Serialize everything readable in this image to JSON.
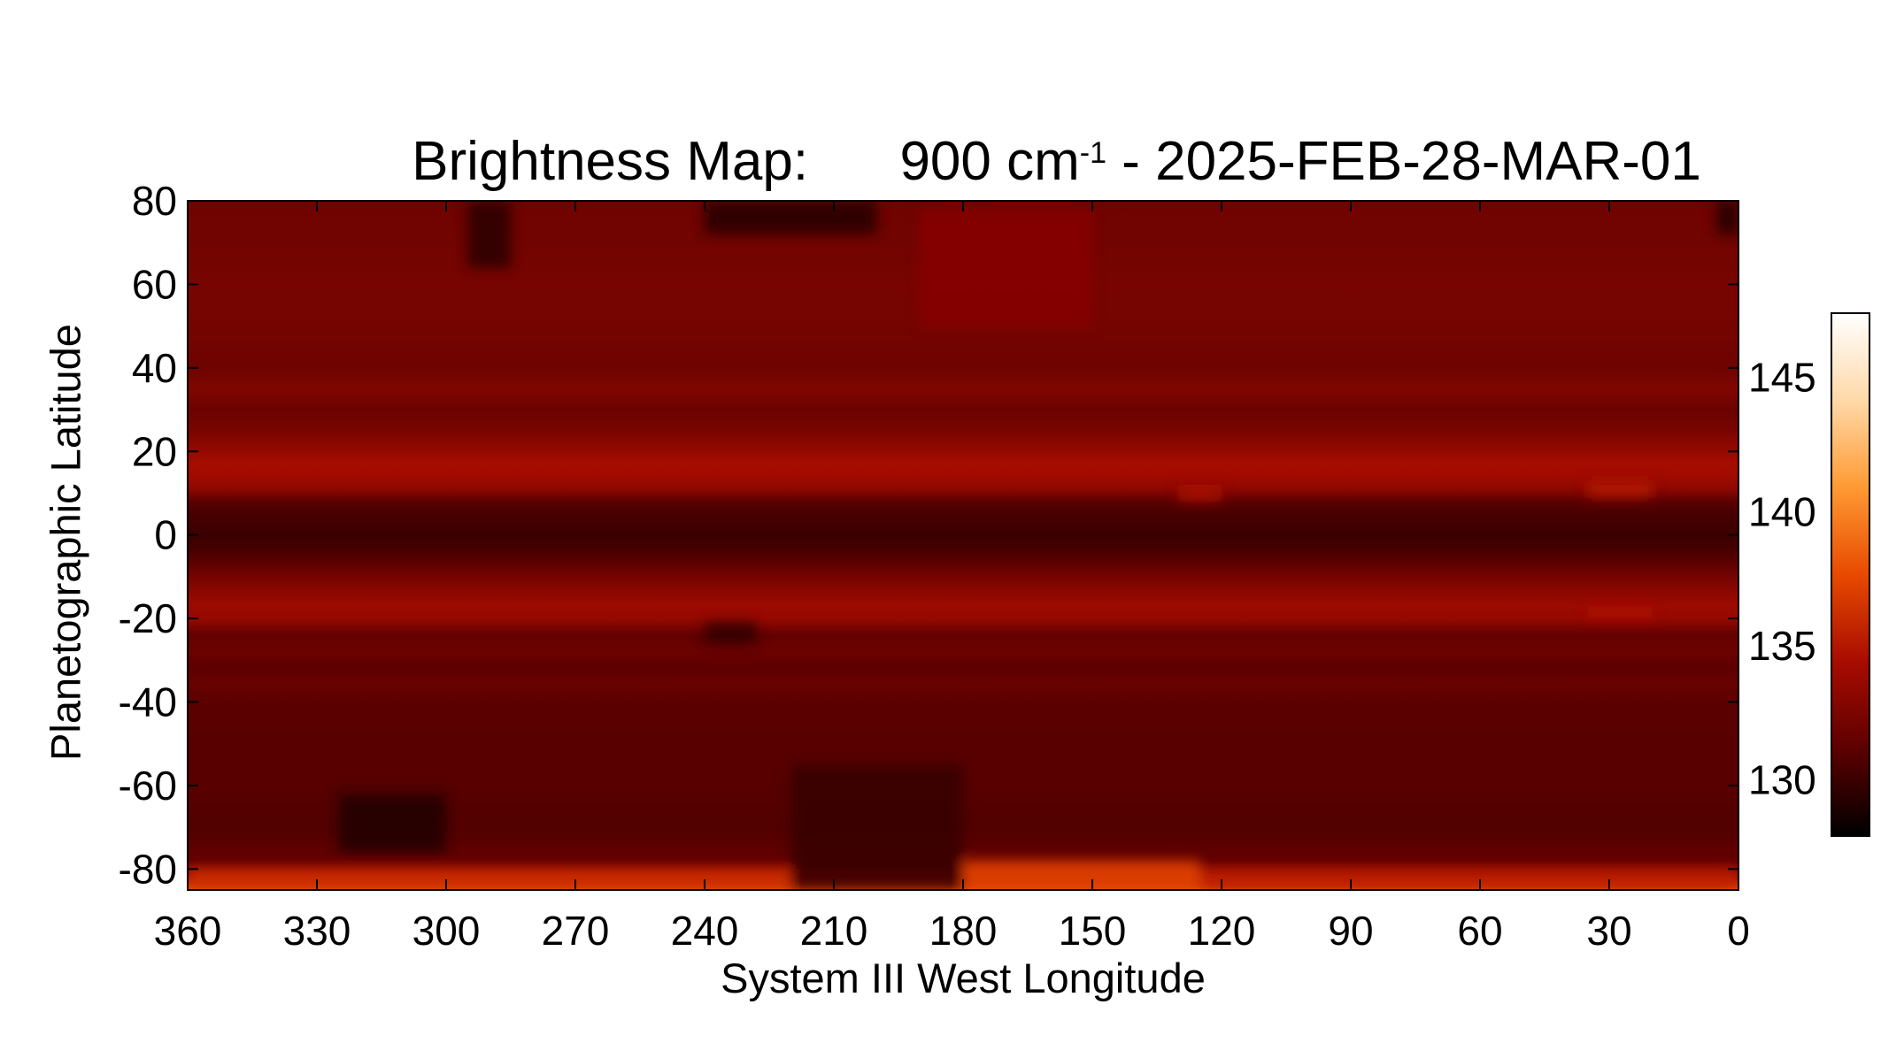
{
  "title": {
    "prefix": "Brightness Map:      900 cm",
    "superscript": "-1",
    "suffix": " - 2025-FEB-28-MAR-01"
  },
  "chart_data": {
    "type": "heatmap",
    "title": "Brightness Map:      900 cm-1 - 2025-FEB-28-MAR-01",
    "xlabel": "System III West Longitude",
    "ylabel": "Planetographic Latitude",
    "xlim": [
      360,
      0
    ],
    "ylim": [
      -85,
      80
    ],
    "xticks": [
      360,
      330,
      300,
      270,
      240,
      210,
      180,
      150,
      120,
      90,
      60,
      30,
      0
    ],
    "yticks": [
      80,
      60,
      40,
      20,
      0,
      -20,
      -40,
      -60,
      -80
    ],
    "colorbar": {
      "ticks": [
        145,
        140,
        135,
        130
      ],
      "range": [
        127.9,
        147.4
      ],
      "colormap": "red-temperature",
      "stops": [
        "#000000",
        "#5c0000",
        "#a80c00",
        "#e84a00",
        "#ff9a33",
        "#ffd9a8",
        "#ffffff"
      ]
    },
    "latitude_profile": {
      "latitude": [
        80,
        70,
        60,
        50,
        40,
        35,
        30,
        25,
        20,
        17,
        14,
        11,
        8,
        5,
        2,
        0,
        -3,
        -6,
        -10,
        -14,
        -17,
        -20,
        -24,
        -28,
        -32,
        -36,
        -40,
        -50,
        -60,
        -70,
        -78,
        -82,
        -85
      ],
      "brightness": [
        132.0,
        132.1,
        132.3,
        132.2,
        131.9,
        132.7,
        131.8,
        132.4,
        133.6,
        134.3,
        134.0,
        133.2,
        131.1,
        130.4,
        130.2,
        130.0,
        130.3,
        131.0,
        132.2,
        133.3,
        133.9,
        133.6,
        131.4,
        131.8,
        131.2,
        131.6,
        131.1,
        131.0,
        131.0,
        130.8,
        131.5,
        134.0,
        138.0
      ]
    },
    "regional_features": [
      {
        "lon": [
          360,
          220
        ],
        "lat": [
          -85,
          -80
        ],
        "brightness": 136.5
      },
      {
        "lon": [
          180,
          125
        ],
        "lat": [
          -85,
          -78
        ],
        "brightness": 137.5
      },
      {
        "lon": [
          125,
          0
        ],
        "lat": [
          -85,
          -80
        ],
        "brightness": 135.5
      },
      {
        "lon": [
          220,
          180
        ],
        "lat": [
          -85,
          -55
        ],
        "brightness": 129.8
      },
      {
        "lon": [
          325,
          300
        ],
        "lat": [
          -76,
          -62
        ],
        "brightness": 129.0
      },
      {
        "lon": [
          240,
          200
        ],
        "lat": [
          80,
          72
        ],
        "brightness": 129.2
      },
      {
        "lon": [
          295,
          285
        ],
        "lat": [
          80,
          64
        ],
        "brightness": 129.3
      },
      {
        "lon": [
          5,
          0
        ],
        "lat": [
          80,
          72
        ],
        "brightness": 129.0
      },
      {
        "lon": [
          190,
          150
        ],
        "lat": [
          78,
          50
        ],
        "brightness": 133.0
      },
      {
        "lon": [
          35,
          20
        ],
        "lat": [
          13,
          9
        ],
        "brightness": 135.0
      },
      {
        "lon": [
          130,
          120
        ],
        "lat": [
          12,
          8
        ],
        "brightness": 134.6
      },
      {
        "lon": [
          240,
          228
        ],
        "lat": [
          -21,
          -26
        ],
        "brightness": 129.6
      },
      {
        "lon": [
          35,
          20
        ],
        "lat": [
          -17,
          -20
        ],
        "brightness": 134.7
      }
    ]
  }
}
